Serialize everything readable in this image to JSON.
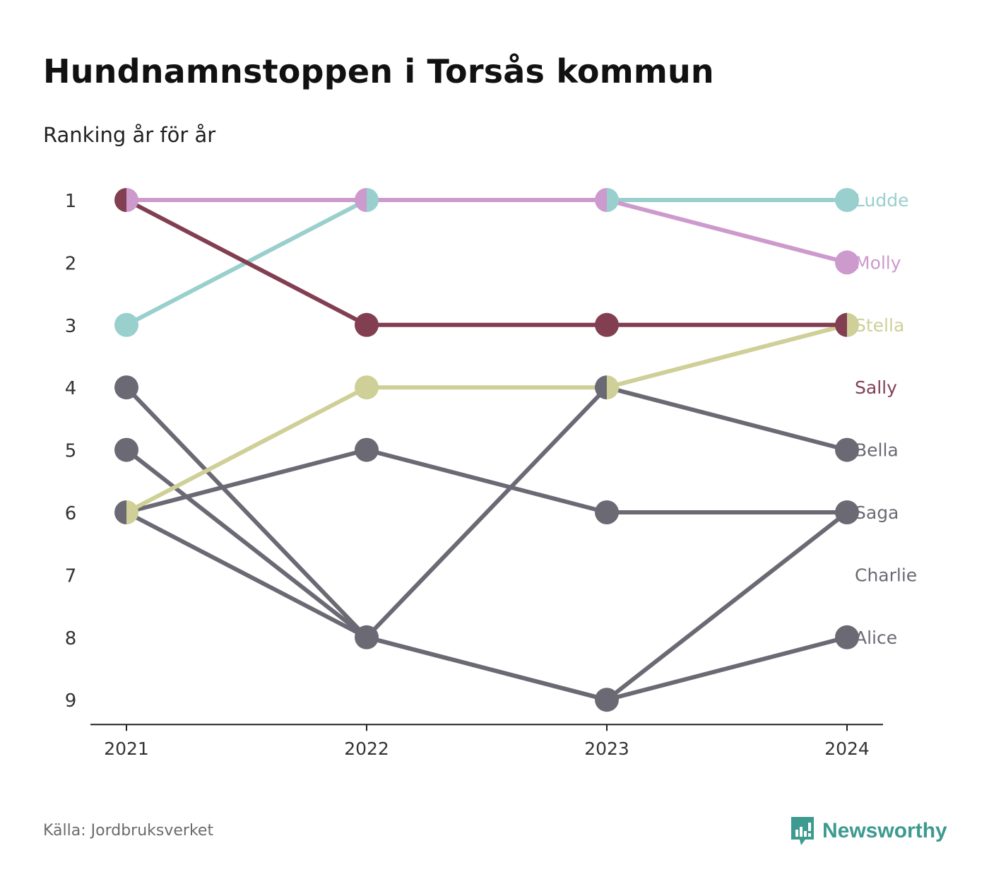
{
  "title": "Hundnamnstoppen i Torsås kommun",
  "subtitle": "Ranking år för år",
  "source": "Källa: Jordbruksverket",
  "brand": {
    "name": "Newsworthy",
    "icon": "newsworthy-logo-icon",
    "color": "#3d9a8f"
  },
  "chart_data": {
    "type": "line",
    "variant": "bump",
    "x": [
      "2021",
      "2022",
      "2023",
      "2024"
    ],
    "y_ticks": [
      1,
      2,
      3,
      4,
      5,
      6,
      7,
      8,
      9
    ],
    "ylim": [
      1,
      9
    ],
    "y_inverted": true,
    "grid": false,
    "series": [
      {
        "name": "Ludde",
        "color": "#99cfcd",
        "values": [
          3,
          1,
          1,
          1
        ]
      },
      {
        "name": "Molly",
        "color": "#cc9acc",
        "values": [
          1,
          1,
          1,
          2
        ]
      },
      {
        "name": "Stella",
        "color": "#cfcf98",
        "values": [
          6,
          4,
          4,
          3
        ]
      },
      {
        "name": "Sally",
        "color": "#823f52",
        "values": [
          1,
          3,
          3,
          3
        ]
      },
      {
        "name": "Bella",
        "color": "#6b6a74",
        "values": [
          4,
          8,
          4,
          5
        ]
      },
      {
        "name": "Saga",
        "color": "#6b6a74",
        "values": [
          6,
          5,
          6,
          6
        ]
      },
      {
        "name": "Charlie",
        "color": "#6b6a74",
        "values": [
          5,
          8,
          9,
          6
        ]
      },
      {
        "name": "Alice",
        "color": "#6b6a74",
        "values": [
          6,
          8,
          9,
          8
        ]
      }
    ]
  }
}
